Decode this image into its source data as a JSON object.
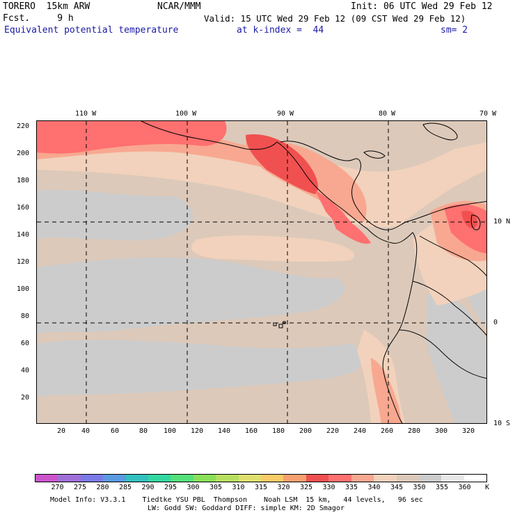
{
  "header": {
    "line1_left": "TORERO  15km ARW",
    "line1_center": "NCAR/MMM",
    "line1_right": "Init: 06 UTC Wed 29 Feb 12",
    "line2_left": "Fcst.     9 h",
    "line2_right": "Valid: 15 UTC Wed 29 Feb 12 (09 CST Wed 29 Feb 12)",
    "field_name": "Equivalent potential temperature",
    "level": "at k-index =  44",
    "smoothing": "sm= 2"
  },
  "map": {
    "lon_labels": [
      "110 W",
      "100 W",
      "90 W",
      "80 W",
      "70 W"
    ],
    "lat_labels": [
      "10 N",
      "0",
      "10 S"
    ],
    "y_grid_labels": [
      "220",
      "200",
      "180",
      "160",
      "140",
      "120",
      "100",
      "80",
      "60",
      "40",
      "20"
    ],
    "x_grid_labels": [
      "20",
      "40",
      "60",
      "80",
      "100",
      "120",
      "140",
      "160",
      "180",
      "200",
      "220",
      "240",
      "260",
      "280",
      "300",
      "320"
    ]
  },
  "colorbar": {
    "labels": [
      "270",
      "275",
      "280",
      "285",
      "290",
      "295",
      "300",
      "305",
      "310",
      "315",
      "320",
      "325",
      "330",
      "335",
      "340",
      "345",
      "350",
      "355",
      "360"
    ],
    "unit": "K",
    "colors": [
      "#cc55cc",
      "#a070d8",
      "#7a7ae8",
      "#5a9ae0",
      "#33c0c0",
      "#33d8a0",
      "#55e07a",
      "#8ae05a",
      "#b8e060",
      "#e0e070",
      "#f8cc66",
      "#f8a070",
      "#f05050",
      "#ff7070",
      "#f8a890",
      "#f2d2bc",
      "#dcc9ba",
      "#cccccc",
      "#e8e8e8",
      "#ffffff"
    ]
  },
  "footer": {
    "line1": "Model Info: V3.3.1    Tiedtke YSU PBL  Thompson    Noah LSM  15 km,   44 levels,   96 sec",
    "line2": "LW: Godd SW: Goddard DIFF: simple KM: 2D Smagor"
  }
}
